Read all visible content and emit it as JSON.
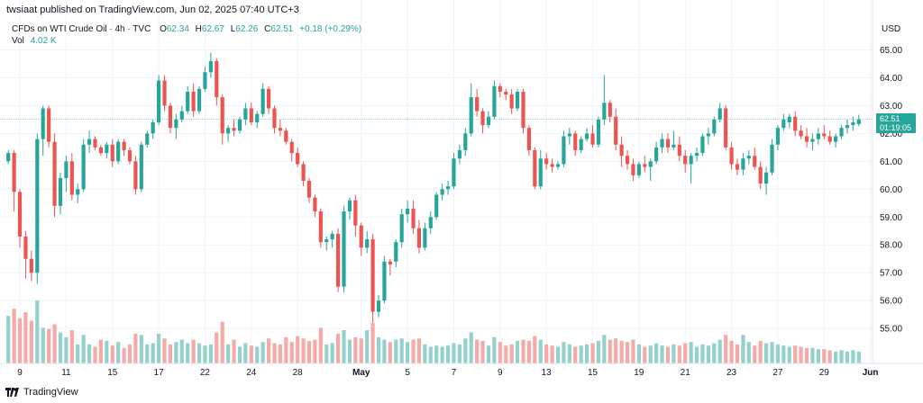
{
  "header": {
    "publisher": "twsiaat published on TradingView.com, Jun 02, 2025 07:40 UTC+3"
  },
  "legend": {
    "symbol": "CFDs on WTI Crude Oil · 4h · TVC",
    "o_label": "O",
    "o_value": "62.34",
    "h_label": "H",
    "h_value": "62.67",
    "l_label": "L",
    "l_value": "62.26",
    "c_label": "C",
    "c_value": "62.51",
    "change": "+0.18 (+0.29%)",
    "vol_label": "Vol",
    "vol_value": "4.02 K"
  },
  "price_axis": {
    "currency": "USD",
    "last_price": "62.51",
    "countdown": "01:19:05"
  },
  "footer": {
    "logo_text": "TradingView"
  },
  "colors": {
    "up": "#26a69a",
    "down": "#ef5350",
    "up_vol": "#93d2cc",
    "down_vol": "#f7a9a7",
    "grid": "#f0f3fa",
    "text": "#131722"
  },
  "chart_data": {
    "type": "candlestick",
    "timeframe": "4h",
    "ylim": [
      54.1,
      65.5
    ],
    "y_ticks": [
      55.0,
      56.0,
      57.0,
      58.0,
      59.0,
      60.0,
      61.0,
      62.0,
      63.0,
      64.0,
      65.0
    ],
    "last_price_line": 62.51,
    "x_ticks": [
      {
        "label": "9",
        "index": 2
      },
      {
        "label": "11",
        "index": 10
      },
      {
        "label": "15",
        "index": 18
      },
      {
        "label": "17",
        "index": 26
      },
      {
        "label": "22",
        "index": 34
      },
      {
        "label": "24",
        "index": 42
      },
      {
        "label": "28",
        "index": 50
      },
      {
        "label": "May",
        "index": 61
      },
      {
        "label": "5",
        "index": 69
      },
      {
        "label": "7",
        "index": 77
      },
      {
        "label": "9",
        "index": 85
      },
      {
        "label": "13",
        "index": 93
      },
      {
        "label": "15",
        "index": 101
      },
      {
        "label": "19",
        "index": 109
      },
      {
        "label": "21",
        "index": 117
      },
      {
        "label": "23",
        "index": 125
      },
      {
        "label": "27",
        "index": 133
      },
      {
        "label": "29",
        "index": 141
      },
      {
        "label": "Jun",
        "index": 149
      }
    ],
    "candles": [
      [
        61.0,
        61.4,
        60.9,
        61.3,
        4.0
      ],
      [
        61.3,
        61.4,
        59.2,
        59.9,
        4.6
      ],
      [
        59.9,
        60.0,
        57.9,
        58.3,
        3.8
      ],
      [
        58.3,
        58.5,
        56.8,
        57.5,
        4.3
      ],
      [
        57.5,
        57.8,
        56.7,
        57.0,
        3.6
      ],
      [
        57.0,
        62.0,
        56.6,
        61.8,
        5.3
      ],
      [
        61.8,
        63.0,
        61.2,
        62.9,
        3.0
      ],
      [
        62.9,
        63.0,
        61.5,
        61.7,
        2.9
      ],
      [
        61.7,
        62.0,
        59.0,
        59.4,
        3.3
      ],
      [
        59.4,
        60.6,
        59.1,
        60.4,
        2.6
      ],
      [
        60.4,
        61.2,
        59.9,
        61.0,
        2.2
      ],
      [
        61.0,
        61.3,
        59.6,
        59.8,
        2.8
      ],
      [
        59.8,
        60.2,
        59.5,
        60.0,
        1.6
      ],
      [
        60.0,
        61.8,
        59.9,
        61.6,
        2.4
      ],
      [
        61.6,
        62.1,
        61.3,
        61.8,
        1.6
      ],
      [
        61.8,
        61.9,
        61.4,
        61.5,
        1.4
      ],
      [
        61.5,
        61.6,
        61.2,
        61.3,
        2.0
      ],
      [
        61.3,
        61.7,
        61.1,
        61.6,
        1.9
      ],
      [
        61.6,
        61.8,
        60.8,
        61.0,
        1.5
      ],
      [
        61.0,
        61.8,
        60.9,
        61.7,
        1.8
      ],
      [
        61.7,
        61.8,
        61.2,
        61.4,
        1.3
      ],
      [
        61.4,
        61.5,
        60.9,
        61.0,
        1.6
      ],
      [
        61.0,
        61.2,
        59.8,
        60.0,
        2.5
      ],
      [
        60.0,
        61.7,
        59.9,
        61.6,
        2.4
      ],
      [
        61.6,
        62.1,
        61.5,
        62.0,
        1.6
      ],
      [
        62.0,
        62.5,
        61.8,
        62.4,
        1.7
      ],
      [
        62.4,
        64.1,
        62.3,
        63.9,
        2.5
      ],
      [
        63.9,
        64.1,
        62.8,
        63.0,
        2.1
      ],
      [
        63.0,
        63.1,
        62.0,
        62.2,
        1.6
      ],
      [
        62.2,
        62.7,
        61.8,
        62.5,
        1.8
      ],
      [
        62.5,
        63.0,
        62.4,
        62.8,
        2.0
      ],
      [
        62.8,
        63.7,
        62.7,
        63.5,
        1.7
      ],
      [
        63.5,
        63.8,
        62.6,
        62.8,
        2.0
      ],
      [
        62.8,
        63.7,
        62.7,
        63.6,
        1.7
      ],
      [
        63.6,
        64.4,
        63.5,
        64.2,
        1.5
      ],
      [
        64.2,
        64.9,
        64.0,
        64.6,
        1.6
      ],
      [
        64.6,
        64.7,
        63.0,
        63.3,
        2.6
      ],
      [
        63.3,
        63.4,
        61.6,
        62.0,
        3.5
      ],
      [
        62.0,
        62.3,
        61.7,
        62.2,
        1.6
      ],
      [
        62.2,
        62.5,
        61.9,
        62.1,
        2.0
      ],
      [
        62.1,
        62.6,
        62.0,
        62.5,
        1.4
      ],
      [
        62.5,
        63.1,
        62.3,
        62.9,
        1.7
      ],
      [
        62.9,
        63.1,
        62.3,
        62.4,
        1.5
      ],
      [
        62.4,
        62.8,
        62.2,
        62.7,
        1.4
      ],
      [
        62.7,
        63.8,
        62.6,
        63.6,
        1.8
      ],
      [
        63.6,
        63.7,
        62.7,
        62.9,
        2.1
      ],
      [
        62.9,
        63.0,
        62.0,
        62.2,
        1.7
      ],
      [
        62.2,
        62.5,
        61.9,
        62.1,
        1.6
      ],
      [
        62.1,
        62.2,
        61.6,
        61.7,
        2.2
      ],
      [
        61.7,
        61.8,
        61.0,
        61.3,
        1.8
      ],
      [
        61.3,
        61.5,
        60.8,
        60.9,
        2.3
      ],
      [
        60.9,
        61.0,
        60.1,
        60.3,
        2.1
      ],
      [
        60.3,
        60.4,
        59.5,
        59.7,
        1.9
      ],
      [
        59.7,
        59.8,
        59.0,
        59.2,
        2.0
      ],
      [
        59.2,
        59.3,
        57.9,
        58.1,
        3.0
      ],
      [
        58.1,
        58.3,
        57.8,
        58.2,
        1.6
      ],
      [
        58.2,
        58.5,
        57.9,
        58.4,
        1.7
      ],
      [
        58.4,
        58.6,
        56.3,
        56.5,
        2.5
      ],
      [
        56.5,
        59.4,
        56.3,
        59.2,
        2.8
      ],
      [
        59.2,
        59.7,
        58.9,
        59.6,
        2.0
      ],
      [
        59.6,
        59.8,
        58.3,
        58.7,
        2.2
      ],
      [
        58.7,
        58.8,
        57.6,
        57.9,
        2.1
      ],
      [
        57.9,
        58.5,
        57.7,
        58.2,
        2.8
      ],
      [
        58.2,
        58.4,
        55.2,
        55.6,
        3.4
      ],
      [
        55.6,
        56.2,
        55.4,
        56.0,
        2.2
      ],
      [
        56.0,
        57.6,
        55.9,
        57.4,
        2.0
      ],
      [
        57.4,
        57.5,
        56.9,
        57.3,
        1.8
      ],
      [
        57.4,
        58.2,
        57.2,
        58.1,
        2.0
      ],
      [
        58.1,
        59.3,
        57.9,
        59.1,
        2.1
      ],
      [
        59.1,
        59.6,
        58.8,
        59.3,
        1.8
      ],
      [
        59.3,
        59.6,
        58.4,
        58.6,
        2.0
      ],
      [
        58.6,
        58.9,
        57.7,
        57.9,
        2.1
      ],
      [
        57.9,
        58.8,
        57.8,
        58.6,
        1.6
      ],
      [
        58.6,
        59.2,
        58.4,
        59.0,
        1.4
      ],
      [
        59.0,
        59.9,
        58.9,
        59.8,
        1.5
      ],
      [
        59.8,
        60.2,
        59.6,
        60.0,
        1.4
      ],
      [
        60.0,
        60.3,
        59.8,
        60.1,
        1.5
      ],
      [
        60.1,
        61.3,
        60.0,
        61.1,
        1.7
      ],
      [
        61.1,
        61.6,
        60.9,
        61.4,
        1.6
      ],
      [
        61.4,
        62.2,
        61.2,
        62.0,
        2.1
      ],
      [
        62.0,
        63.8,
        61.9,
        63.3,
        2.6
      ],
      [
        63.3,
        63.6,
        62.6,
        62.8,
        2.0
      ],
      [
        62.8,
        62.9,
        62.0,
        62.3,
        1.9
      ],
      [
        62.3,
        62.8,
        62.2,
        62.6,
        1.5
      ],
      [
        62.6,
        63.9,
        62.5,
        63.7,
        2.2
      ],
      [
        63.7,
        63.8,
        63.3,
        63.5,
        1.8
      ],
      [
        63.5,
        63.6,
        63.2,
        63.4,
        1.5
      ],
      [
        63.4,
        63.6,
        62.7,
        62.9,
        1.6
      ],
      [
        62.9,
        63.6,
        62.8,
        63.5,
        1.9
      ],
      [
        63.5,
        63.6,
        62.0,
        62.2,
        2.0
      ],
      [
        62.2,
        62.3,
        61.2,
        61.4,
        1.9
      ],
      [
        61.4,
        61.5,
        60.0,
        60.1,
        2.3
      ],
      [
        60.1,
        61.4,
        60.0,
        61.1,
        2.0
      ],
      [
        61.1,
        61.3,
        60.7,
        60.9,
        1.6
      ],
      [
        60.9,
        61.1,
        60.6,
        60.8,
        1.5
      ],
      [
        60.8,
        61.0,
        60.7,
        60.9,
        1.4
      ],
      [
        60.9,
        62.1,
        60.8,
        61.9,
        1.8
      ],
      [
        61.9,
        62.2,
        61.6,
        62.0,
        1.6
      ],
      [
        62.0,
        62.1,
        61.2,
        61.4,
        1.4
      ],
      [
        61.4,
        61.9,
        61.3,
        61.8,
        1.5
      ],
      [
        61.8,
        62.2,
        61.7,
        62.0,
        1.6
      ],
      [
        62.0,
        62.3,
        61.5,
        61.6,
        1.7
      ],
      [
        61.6,
        62.6,
        61.5,
        62.5,
        1.9
      ],
      [
        62.5,
        64.1,
        62.3,
        63.1,
        2.4
      ],
      [
        63.1,
        63.2,
        62.4,
        62.6,
        2.0
      ],
      [
        62.6,
        62.9,
        61.4,
        61.6,
        2.1
      ],
      [
        61.6,
        61.9,
        60.8,
        61.2,
        1.9
      ],
      [
        61.2,
        61.4,
        60.7,
        60.9,
        1.8
      ],
      [
        60.9,
        61.1,
        60.3,
        60.5,
        2.0
      ],
      [
        60.5,
        61.0,
        60.4,
        60.9,
        1.6
      ],
      [
        60.9,
        61.2,
        60.6,
        60.8,
        1.4
      ],
      [
        60.8,
        61.1,
        60.3,
        61.0,
        1.5
      ],
      [
        61.0,
        61.7,
        60.9,
        61.5,
        1.7
      ],
      [
        61.5,
        62.0,
        61.3,
        61.8,
        1.5
      ],
      [
        61.8,
        62.0,
        61.3,
        61.5,
        1.4
      ],
      [
        61.5,
        62.1,
        61.4,
        61.6,
        1.6
      ],
      [
        61.6,
        61.9,
        61.0,
        61.2,
        1.5
      ],
      [
        61.2,
        61.4,
        60.6,
        60.9,
        1.7
      ],
      [
        60.9,
        61.3,
        60.2,
        61.2,
        1.8
      ],
      [
        61.2,
        61.5,
        61.0,
        61.3,
        1.4
      ],
      [
        61.3,
        62.0,
        61.2,
        61.9,
        1.6
      ],
      [
        61.9,
        62.2,
        61.6,
        62.0,
        1.5
      ],
      [
        62.0,
        62.6,
        61.9,
        62.5,
        1.7
      ],
      [
        62.5,
        63.1,
        62.4,
        62.9,
        2.0
      ],
      [
        62.9,
        63.0,
        61.4,
        61.5,
        2.4
      ],
      [
        61.5,
        61.7,
        60.7,
        60.9,
        1.9
      ],
      [
        60.9,
        61.1,
        60.5,
        60.7,
        1.6
      ],
      [
        60.7,
        61.3,
        60.5,
        61.1,
        2.4
      ],
      [
        61.1,
        61.4,
        60.9,
        61.2,
        1.8
      ],
      [
        61.2,
        61.5,
        60.7,
        60.8,
        1.5
      ],
      [
        60.8,
        61.0,
        60.0,
        60.2,
        1.9
      ],
      [
        60.2,
        60.8,
        59.8,
        60.6,
        1.7
      ],
      [
        60.6,
        61.8,
        60.5,
        61.6,
        1.8
      ],
      [
        61.6,
        62.3,
        61.4,
        62.2,
        1.6
      ],
      [
        62.2,
        62.7,
        62.1,
        62.5,
        1.5
      ],
      [
        62.4,
        62.7,
        62.2,
        62.6,
        1.4
      ],
      [
        62.6,
        62.8,
        61.9,
        62.1,
        1.5
      ],
      [
        62.1,
        62.3,
        61.8,
        61.9,
        1.4
      ],
      [
        61.9,
        62.2,
        61.5,
        61.7,
        1.3
      ],
      [
        61.7,
        62.0,
        61.4,
        61.8,
        1.3
      ],
      [
        61.8,
        62.2,
        61.6,
        62.0,
        1.2
      ],
      [
        62.0,
        62.3,
        61.8,
        61.9,
        1.2
      ],
      [
        61.9,
        62.1,
        61.6,
        61.7,
        1.1
      ],
      [
        61.7,
        62.0,
        61.5,
        61.9,
        1.0
      ],
      [
        61.9,
        62.3,
        61.8,
        62.2,
        1.1
      ],
      [
        62.2,
        62.5,
        62.0,
        62.3,
        1.0
      ],
      [
        62.3,
        62.6,
        62.1,
        62.4,
        1.1
      ],
      [
        62.34,
        62.67,
        62.26,
        62.51,
        1.0
      ]
    ]
  }
}
